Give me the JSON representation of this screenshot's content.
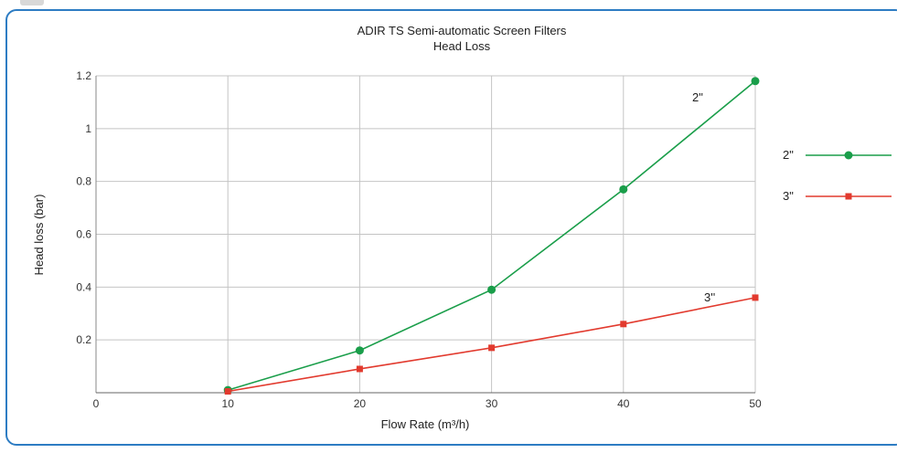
{
  "chart_data": {
    "type": "line",
    "title": "ADIR TS Semi-automatic Screen Filters",
    "subtitle": "Head Loss",
    "xlabel": "Flow Rate (m³/h)",
    "ylabel": "Head loss (bar)",
    "xlim": [
      0,
      50
    ],
    "ylim": [
      0,
      1.2
    ],
    "x_ticks": [
      0,
      10,
      20,
      30,
      40,
      50
    ],
    "y_ticks": [
      0.2,
      0.4,
      0.6,
      0.8,
      1,
      1.2
    ],
    "grid": true,
    "legend_position": "right",
    "series": [
      {
        "name": "2\"",
        "color": "#1a9e4a",
        "marker": "circle",
        "x": [
          10,
          20,
          30,
          40,
          50
        ],
        "y": [
          0.01,
          0.16,
          0.39,
          0.77,
          1.18
        ],
        "inline_label": "2\""
      },
      {
        "name": "3\"",
        "color": "#e23a2e",
        "marker": "square",
        "x": [
          10,
          20,
          30,
          40,
          50
        ],
        "y": [
          0.005,
          0.09,
          0.17,
          0.26,
          0.36
        ],
        "inline_label": "3''"
      }
    ]
  }
}
